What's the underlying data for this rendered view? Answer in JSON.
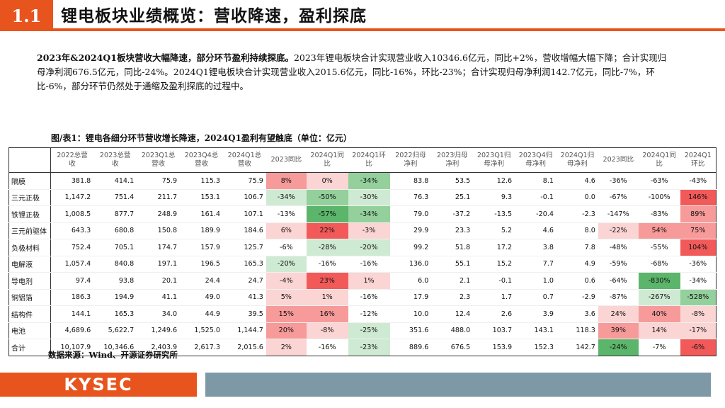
{
  "header": {
    "section_number": "1.1",
    "title": "锂电板块业绩概览：营收降速，盈利探底"
  },
  "summary": {
    "bold_lead": "2023年&2024Q1板块营收大幅降速，部分环节盈利持续探底。",
    "body": "2023年锂电板块合计实现营业收入10346.6亿元，同比+2%，营收增幅大幅下降；合计实现归母净利润676.5亿元，同比-24%。2024Q1锂电板块合计实现营业收入2015.6亿元，同比-16%，环比-23%；合计实现归母净利润142.7亿元，同比-7%，环比-6%，部分环节仍然处于通缩及盈利探底的过程中。"
  },
  "caption": "图/表1：锂电各细分环节营收增长降速，2024Q1盈利有望触底（单位：亿元）",
  "colors": {
    "accent": "#e8541e",
    "footer_gray": "#7e99a6",
    "pos_strong": "#f25a5a",
    "pos_mid": "#f79a9a",
    "pos_light": "#fbd4d4",
    "neg_strong": "#5bb56b",
    "neg_mid": "#93d09c",
    "neg_light": "#cfead3"
  },
  "table": {
    "headers": [
      "",
      "2022总营收",
      "2023总营收",
      "2023Q1总营收",
      "2023Q4总营收",
      "2024Q1总营收",
      "2023同比",
      "2024Q1同比",
      "2024Q1环比",
      "2022归母净利",
      "2023归母净利",
      "2023Q1归母净利",
      "2023Q4归母净利",
      "2024Q1归母净利",
      "2023同比",
      "2024Q1同比",
      "2024Q1环比"
    ],
    "rows": [
      {
        "name": "隔膜",
        "cells": [
          "381.8",
          "414.1",
          "75.9",
          "115.3",
          "75.9",
          "8%",
          "0%",
          "-34%",
          "83.8",
          "53.5",
          "12.6",
          "8.1",
          "4.6",
          "-36%",
          "-63%",
          "-43%"
        ],
        "shade": [
          "",
          "",
          "",
          "",
          "",
          "pm",
          "pl",
          "nm",
          "",
          "",
          "",
          "",
          "",
          "",
          "",
          ""
        ]
      },
      {
        "name": "三元正极",
        "cells": [
          "1,147.2",
          "751.4",
          "211.7",
          "153.1",
          "106.7",
          "-34%",
          "-50%",
          "-30%",
          "76.3",
          "25.1",
          "9.3",
          "-0.1",
          "0.0",
          "-67%",
          "-100%",
          "146%"
        ],
        "shade": [
          "",
          "",
          "",
          "",
          "",
          "nl",
          "nm",
          "nl",
          "",
          "",
          "",
          "",
          "",
          "",
          "",
          "ps"
        ]
      },
      {
        "name": "铁锂正极",
        "cells": [
          "1,008.5",
          "877.7",
          "248.9",
          "161.4",
          "107.1",
          "-13%",
          "-57%",
          "-34%",
          "79.0",
          "-37.2",
          "-13.5",
          "-20.4",
          "-2.3",
          "-147%",
          "-83%",
          "89%"
        ],
        "shade": [
          "",
          "",
          "",
          "",
          "",
          "",
          "ns",
          "nm",
          "",
          "",
          "",
          "",
          "",
          "",
          "",
          "pm"
        ]
      },
      {
        "name": "三元前驱体",
        "cells": [
          "643.3",
          "680.8",
          "150.8",
          "189.9",
          "184.6",
          "6%",
          "22%",
          "-3%",
          "29.9",
          "23.3",
          "5.2",
          "4.6",
          "8.0",
          "-22%",
          "54%",
          "75%"
        ],
        "shade": [
          "",
          "",
          "",
          "",
          "",
          "pl",
          "ps",
          "pl",
          "",
          "",
          "",
          "",
          "",
          "pl",
          "pm",
          "pm"
        ]
      },
      {
        "name": "负极材料",
        "cells": [
          "752.4",
          "705.1",
          "174.7",
          "157.9",
          "125.7",
          "-6%",
          "-28%",
          "-20%",
          "99.2",
          "51.8",
          "17.2",
          "3.8",
          "7.8",
          "-48%",
          "-55%",
          "104%"
        ],
        "shade": [
          "",
          "",
          "",
          "",
          "",
          "",
          "nl",
          "nl",
          "",
          "",
          "",
          "",
          "",
          "",
          "",
          "ps"
        ]
      },
      {
        "name": "电解液",
        "cells": [
          "1,057.4",
          "840.8",
          "197.1",
          "196.5",
          "165.3",
          "-20%",
          "-16%",
          "-16%",
          "136.0",
          "55.1",
          "15.2",
          "7.7",
          "4.9",
          "-59%",
          "-68%",
          "-36%"
        ],
        "shade": [
          "",
          "",
          "",
          "",
          "",
          "nl",
          "",
          "",
          "",
          "",
          "",
          "",
          "",
          "",
          "",
          ""
        ]
      },
      {
        "name": "导电剂",
        "cells": [
          "97.4",
          "93.8",
          "20.1",
          "24.4",
          "24.7",
          "-4%",
          "23%",
          "1%",
          "6.0",
          "2.1",
          "-0.1",
          "1.0",
          "0.6",
          "-64%",
          "-830%",
          "-34%"
        ],
        "shade": [
          "",
          "",
          "",
          "",
          "",
          "pl",
          "ps",
          "pl",
          "",
          "",
          "",
          "",
          "",
          "",
          "ns",
          ""
        ]
      },
      {
        "name": "铜铝箔",
        "cells": [
          "186.3",
          "194.9",
          "41.1",
          "49.0",
          "41.3",
          "5%",
          "1%",
          "-16%",
          "17.9",
          "2.3",
          "1.7",
          "0.7",
          "-2.9",
          "-87%",
          "-267%",
          "-528%"
        ],
        "shade": [
          "",
          "",
          "",
          "",
          "",
          "pl",
          "pl",
          "",
          "",
          "",
          "",
          "",
          "",
          "",
          "nl",
          "nm"
        ]
      },
      {
        "name": "结构件",
        "cells": [
          "144.1",
          "165.3",
          "34.0",
          "44.9",
          "39.5",
          "15%",
          "16%",
          "-12%",
          "10.0",
          "12.4",
          "2.6",
          "3.9",
          "3.6",
          "24%",
          "40%",
          "-8%"
        ],
        "shade": [
          "",
          "",
          "",
          "",
          "",
          "pm",
          "pm",
          "",
          "",
          "",
          "",
          "",
          "",
          "pl",
          "pm",
          "pl"
        ]
      },
      {
        "name": "电池",
        "cells": [
          "4,689.6",
          "5,622.7",
          "1,249.6",
          "1,525.0",
          "1,144.7",
          "20%",
          "-8%",
          "-25%",
          "351.6",
          "488.0",
          "103.7",
          "143.1",
          "118.3",
          "39%",
          "14%",
          "-17%"
        ],
        "shade": [
          "",
          "",
          "",
          "",
          "",
          "pm",
          "pl",
          "nl",
          "",
          "",
          "",
          "",
          "",
          "pm",
          "pl",
          "pl"
        ]
      }
    ],
    "total": {
      "name": "合计",
      "cells": [
        "10,107.9",
        "10,346.6",
        "2,403.9",
        "2,617.3",
        "2,015.6",
        "2%",
        "-16%",
        "-23%",
        "889.6",
        "676.5",
        "153.9",
        "152.3",
        "142.7",
        "-24%",
        "-7%",
        "-6%"
      ],
      "shade": [
        "",
        "",
        "",
        "",
        "",
        "pl",
        "",
        "nl",
        "",
        "",
        "",
        "",
        "",
        "ns",
        "",
        "ps"
      ]
    }
  },
  "source": "数据来源：Wind、开源证券研究所",
  "footer": {
    "logo_text": "KYSEC"
  }
}
